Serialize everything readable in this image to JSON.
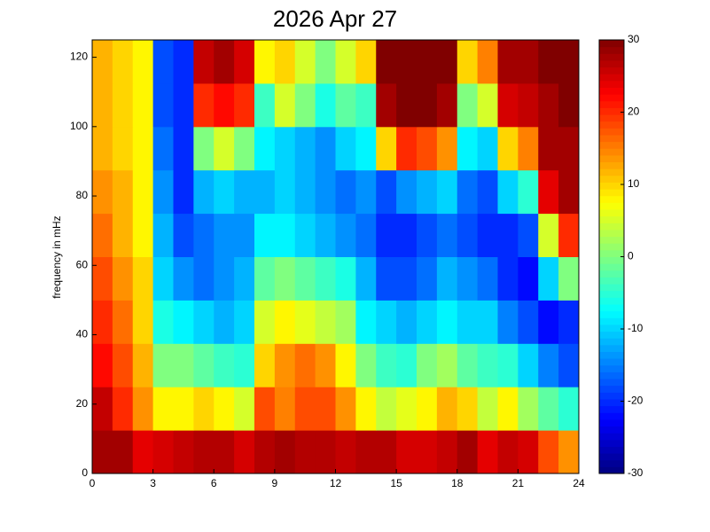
{
  "chart_data": {
    "type": "heatmap",
    "title": "2026 Apr 27",
    "y_label": "frequency in mHz",
    "xlim": [
      0,
      24
    ],
    "xticks": [
      0,
      3,
      6,
      9,
      12,
      15,
      18,
      21,
      24
    ],
    "ylim": [
      0,
      125
    ],
    "yticks": [
      0,
      20,
      40,
      60,
      80,
      100,
      120
    ],
    "clim": [
      -30,
      30
    ],
    "cticks": [
      -30,
      -20,
      -10,
      0,
      10,
      20,
      30
    ],
    "colormap": "jet",
    "values": [
      [
        28,
        28,
        24,
        25,
        26,
        27,
        27,
        25,
        27,
        28,
        27,
        27,
        26,
        27,
        27,
        25,
        25,
        26,
        28,
        24,
        26,
        25,
        18,
        14
      ],
      [
        26,
        20,
        14,
        8,
        8,
        10,
        8,
        5,
        18,
        15,
        18,
        18,
        14,
        8,
        4,
        6,
        8,
        12,
        10,
        4,
        8,
        2,
        -2,
        -5
      ],
      [
        22,
        18,
        12,
        0,
        0,
        -2,
        -4,
        -5,
        10,
        14,
        16,
        14,
        8,
        0,
        -4,
        -5,
        0,
        2,
        -2,
        -4,
        -5,
        -10,
        -15,
        -18
      ],
      [
        20,
        16,
        10,
        -6,
        -8,
        -10,
        -12,
        -10,
        5,
        8,
        6,
        4,
        2,
        -8,
        -10,
        -12,
        -10,
        -8,
        -10,
        -10,
        -15,
        -18,
        -22,
        -20
      ],
      [
        18,
        14,
        10,
        -10,
        -14,
        -16,
        -14,
        -12,
        -2,
        0,
        -2,
        -4,
        -6,
        -12,
        -18,
        -18,
        -16,
        -12,
        -14,
        -16,
        -20,
        -22,
        -10,
        0
      ],
      [
        16,
        12,
        8,
        -12,
        -18,
        -16,
        -14,
        -14,
        -8,
        -8,
        -10,
        -12,
        -14,
        -16,
        -20,
        -20,
        -18,
        -16,
        -18,
        -20,
        -20,
        -18,
        5,
        20
      ],
      [
        14,
        12,
        8,
        -14,
        -20,
        -12,
        -10,
        -12,
        -12,
        -10,
        -12,
        -14,
        -16,
        -14,
        -18,
        -14,
        -12,
        -10,
        -16,
        -18,
        -10,
        -5,
        24,
        28
      ],
      [
        12,
        10,
        8,
        -16,
        -20,
        0,
        5,
        0,
        -8,
        -10,
        -12,
        -14,
        -10,
        -8,
        10,
        20,
        18,
        14,
        -8,
        -10,
        10,
        15,
        28,
        28
      ],
      [
        12,
        10,
        8,
        -18,
        -20,
        20,
        22,
        20,
        -4,
        5,
        0,
        -6,
        -2,
        -4,
        28,
        30,
        30,
        28,
        0,
        5,
        25,
        26,
        28,
        30
      ],
      [
        12,
        10,
        8,
        -18,
        -20,
        26,
        28,
        25,
        8,
        10,
        5,
        0,
        5,
        10,
        30,
        30,
        30,
        30,
        10,
        15,
        28,
        28,
        30,
        30
      ]
    ]
  }
}
